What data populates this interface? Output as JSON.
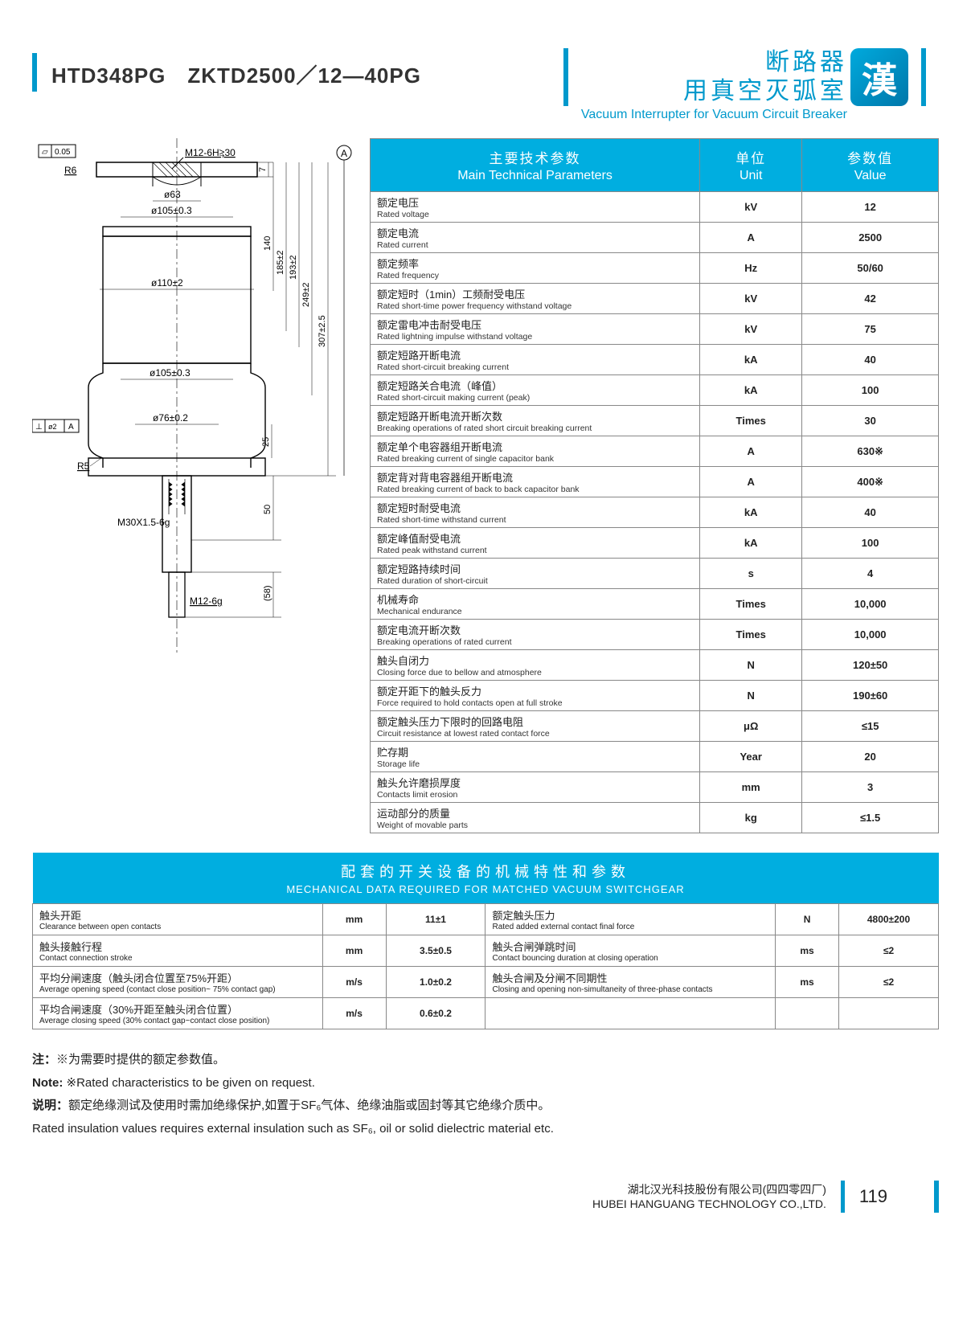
{
  "header": {
    "model": "HTD348PG　ZKTD2500／12—40PG",
    "title_line1": "断路器",
    "title_line2": "用真空灭弧室",
    "title_en": "Vacuum Interrupter for Vacuum Circuit Breaker",
    "logo_glyph": "漢"
  },
  "drawing": {
    "labels": {
      "flatness": "0.05",
      "r6": "R6",
      "m12_top": "M12-6H⥸30",
      "a": "A",
      "d7": "7",
      "d63": "ø63",
      "d1050_3a": "ø105±0.3",
      "d110": "ø110±2",
      "d140": "140",
      "d185": "185±2",
      "d193": "193±2",
      "d249": "249±2",
      "d1050_3b": "ø105±0.3",
      "d307": "307±2.5",
      "d760_2": "ø76±0.2",
      "d25": "25",
      "perp": "ø2",
      "r5": "R5",
      "m30": "M30X1.5-6g",
      "d50": "50",
      "m12_bot": "M12-6g",
      "d58": "(58)"
    },
    "colors": {
      "line": "#000",
      "thin": "#444",
      "hatch": "#000"
    }
  },
  "params_table": {
    "headers": {
      "param_cn": "主要技术参数",
      "param_en": "Main Technical Parameters",
      "unit_cn": "单位",
      "unit_en": "Unit",
      "value_cn": "参数值",
      "value_en": "Value"
    },
    "rows": [
      {
        "cn": "额定电压",
        "en": "Rated voltage",
        "unit": "kV",
        "val": "12"
      },
      {
        "cn": "额定电流",
        "en": "Rated current",
        "unit": "A",
        "val": "2500"
      },
      {
        "cn": "额定频率",
        "en": "Rated frequency",
        "unit": "Hz",
        "val": "50/60"
      },
      {
        "cn": "额定短时（1min）工频耐受电压",
        "en": "Rated short-time power frequency withstand voltage",
        "unit": "kV",
        "val": "42"
      },
      {
        "cn": "额定雷电冲击耐受电压",
        "en": "Rated lightning impulse withstand voltage",
        "unit": "kV",
        "val": "75"
      },
      {
        "cn": "额定短路开断电流",
        "en": "Rated short-circuit breaking current",
        "unit": "kA",
        "val": "40"
      },
      {
        "cn": "额定短路关合电流（峰值）",
        "en": "Rated short-circuit making current (peak)",
        "unit": "kA",
        "val": "100"
      },
      {
        "cn": "额定短路开断电流开断次数",
        "en": "Breaking operations of rated short circuit breaking current",
        "unit": "Times",
        "val": "30"
      },
      {
        "cn": "额定单个电容器组开断电流",
        "en": "Rated breaking current of single capacitor bank",
        "unit": "A",
        "val": "630※"
      },
      {
        "cn": "额定背对背电容器组开断电流",
        "en": "Rated breaking current of back to back capacitor bank",
        "unit": "A",
        "val": "400※"
      },
      {
        "cn": "额定短时耐受电流",
        "en": "Rated short-time withstand current",
        "unit": "kA",
        "val": "40"
      },
      {
        "cn": "额定峰值耐受电流",
        "en": "Rated peak withstand current",
        "unit": "kA",
        "val": "100"
      },
      {
        "cn": "额定短路持续时间",
        "en": "Rated duration of short-circuit",
        "unit": "s",
        "val": "4"
      },
      {
        "cn": "机械寿命",
        "en": "Mechanical endurance",
        "unit": "Times",
        "val": "10,000"
      },
      {
        "cn": "额定电流开断次数",
        "en": "Breaking operations of rated current",
        "unit": "Times",
        "val": "10,000"
      },
      {
        "cn": "触头自闭力",
        "en": "Closing force due to bellow and atmosphere",
        "unit": "N",
        "val": "120±50"
      },
      {
        "cn": "额定开距下的触头反力",
        "en": "Force required to hold contacts open at full stroke",
        "unit": "N",
        "val": "190±60"
      },
      {
        "cn": "额定触头压力下限时的回路电阻",
        "en": "Circuit resistance at lowest rated contact force",
        "unit": "μΩ",
        "val": "≤15"
      },
      {
        "cn": "贮存期",
        "en": "Storage life",
        "unit": "Year",
        "val": "20"
      },
      {
        "cn": "触头允许磨损厚度",
        "en": "Contacts limit erosion",
        "unit": "mm",
        "val": "3"
      },
      {
        "cn": "运动部分的质量",
        "en": "Weight of movable parts",
        "unit": "kg",
        "val": "≤1.5"
      }
    ]
  },
  "mech_table": {
    "header_cn": "配套的开关设备的机械特性和参数",
    "header_en": "MECHANICAL DATA REQUIRED FOR MATCHED VACUUM SWITCHGEAR",
    "rows": [
      [
        {
          "cn": "触头开距",
          "en": "Clearance between open contacts",
          "unit": "mm",
          "val": "11±1"
        },
        {
          "cn": "额定触头压力",
          "en": "Rated added external contact final force",
          "unit": "N",
          "val": "4800±200"
        }
      ],
      [
        {
          "cn": "触头接触行程",
          "en": "Contact connection stroke",
          "unit": "mm",
          "val": "3.5±0.5"
        },
        {
          "cn": "触头合闸弹跳时间",
          "en": "Contact bouncing duration at closing operation",
          "unit": "ms",
          "val": "≤2"
        }
      ],
      [
        {
          "cn": "平均分闸速度（触头闭合位置至75%开距）",
          "en": "Average opening speed (contact close position~ 75% contact gap)",
          "unit": "m/s",
          "val": "1.0±0.2"
        },
        {
          "cn": "触头合闸及分闸不同期性",
          "en": "Closing and opening non-simultaneity of three-phase contacts",
          "unit": "ms",
          "val": "≤2"
        }
      ],
      [
        {
          "cn": "平均合闸速度（30%开距至触头闭合位置）",
          "en": "Average closing speed (30% contact gap~contact close position)",
          "unit": "m/s",
          "val": "0.6±0.2"
        },
        {
          "cn": "",
          "en": "",
          "unit": "",
          "val": ""
        }
      ]
    ]
  },
  "notes": {
    "n1_label": "注：",
    "n1": "※为需要时提供的额定参数值。",
    "n2_label": "Note: ",
    "n2": "※Rated characteristics to be given on request.",
    "n3_label": "说明：",
    "n3": "额定绝缘测试及使用时需加绝缘保护,如置于SF₆气体、绝缘油脂或固封等其它绝缘介质中。",
    "n4": "Rated insulation values requires external insulation such as SF₆, oil or solid dielectric material etc."
  },
  "footer": {
    "cn": "湖北汉光科技股份有限公司(四四零四厂)",
    "en": "HUBEI HANGUANG TECHNOLOGY CO.,LTD.",
    "page": "119"
  },
  "colors": {
    "accent": "#0099cc",
    "table_head": "#00aee0"
  }
}
